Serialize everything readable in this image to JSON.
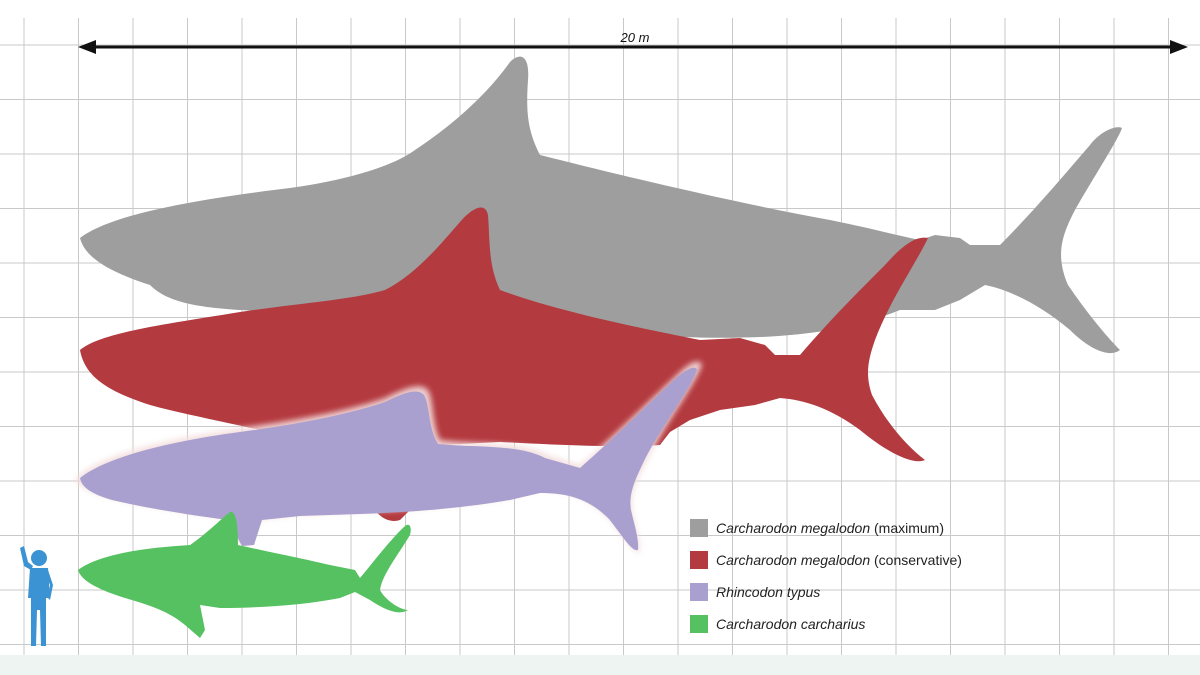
{
  "scale": {
    "label": "20 m"
  },
  "legend": [
    {
      "name": "Carcharodon megalodon",
      "qualifier": " (maximum)",
      "color": "#9e9e9e"
    },
    {
      "name": "Carcharodon megalodon",
      "qualifier": " (conservative)",
      "color": "#b33a3f"
    },
    {
      "name": "Rhincodon typus",
      "qualifier": "",
      "color": "#a9a0cf"
    },
    {
      "name": "Carcharodon carcharius",
      "qualifier": "",
      "color": "#55c161"
    }
  ],
  "colors": {
    "grid": "#c9c9c9",
    "human": "#3b93d3"
  },
  "icons": [
    "human-silhouette-icon",
    "double-arrow-icon"
  ]
}
